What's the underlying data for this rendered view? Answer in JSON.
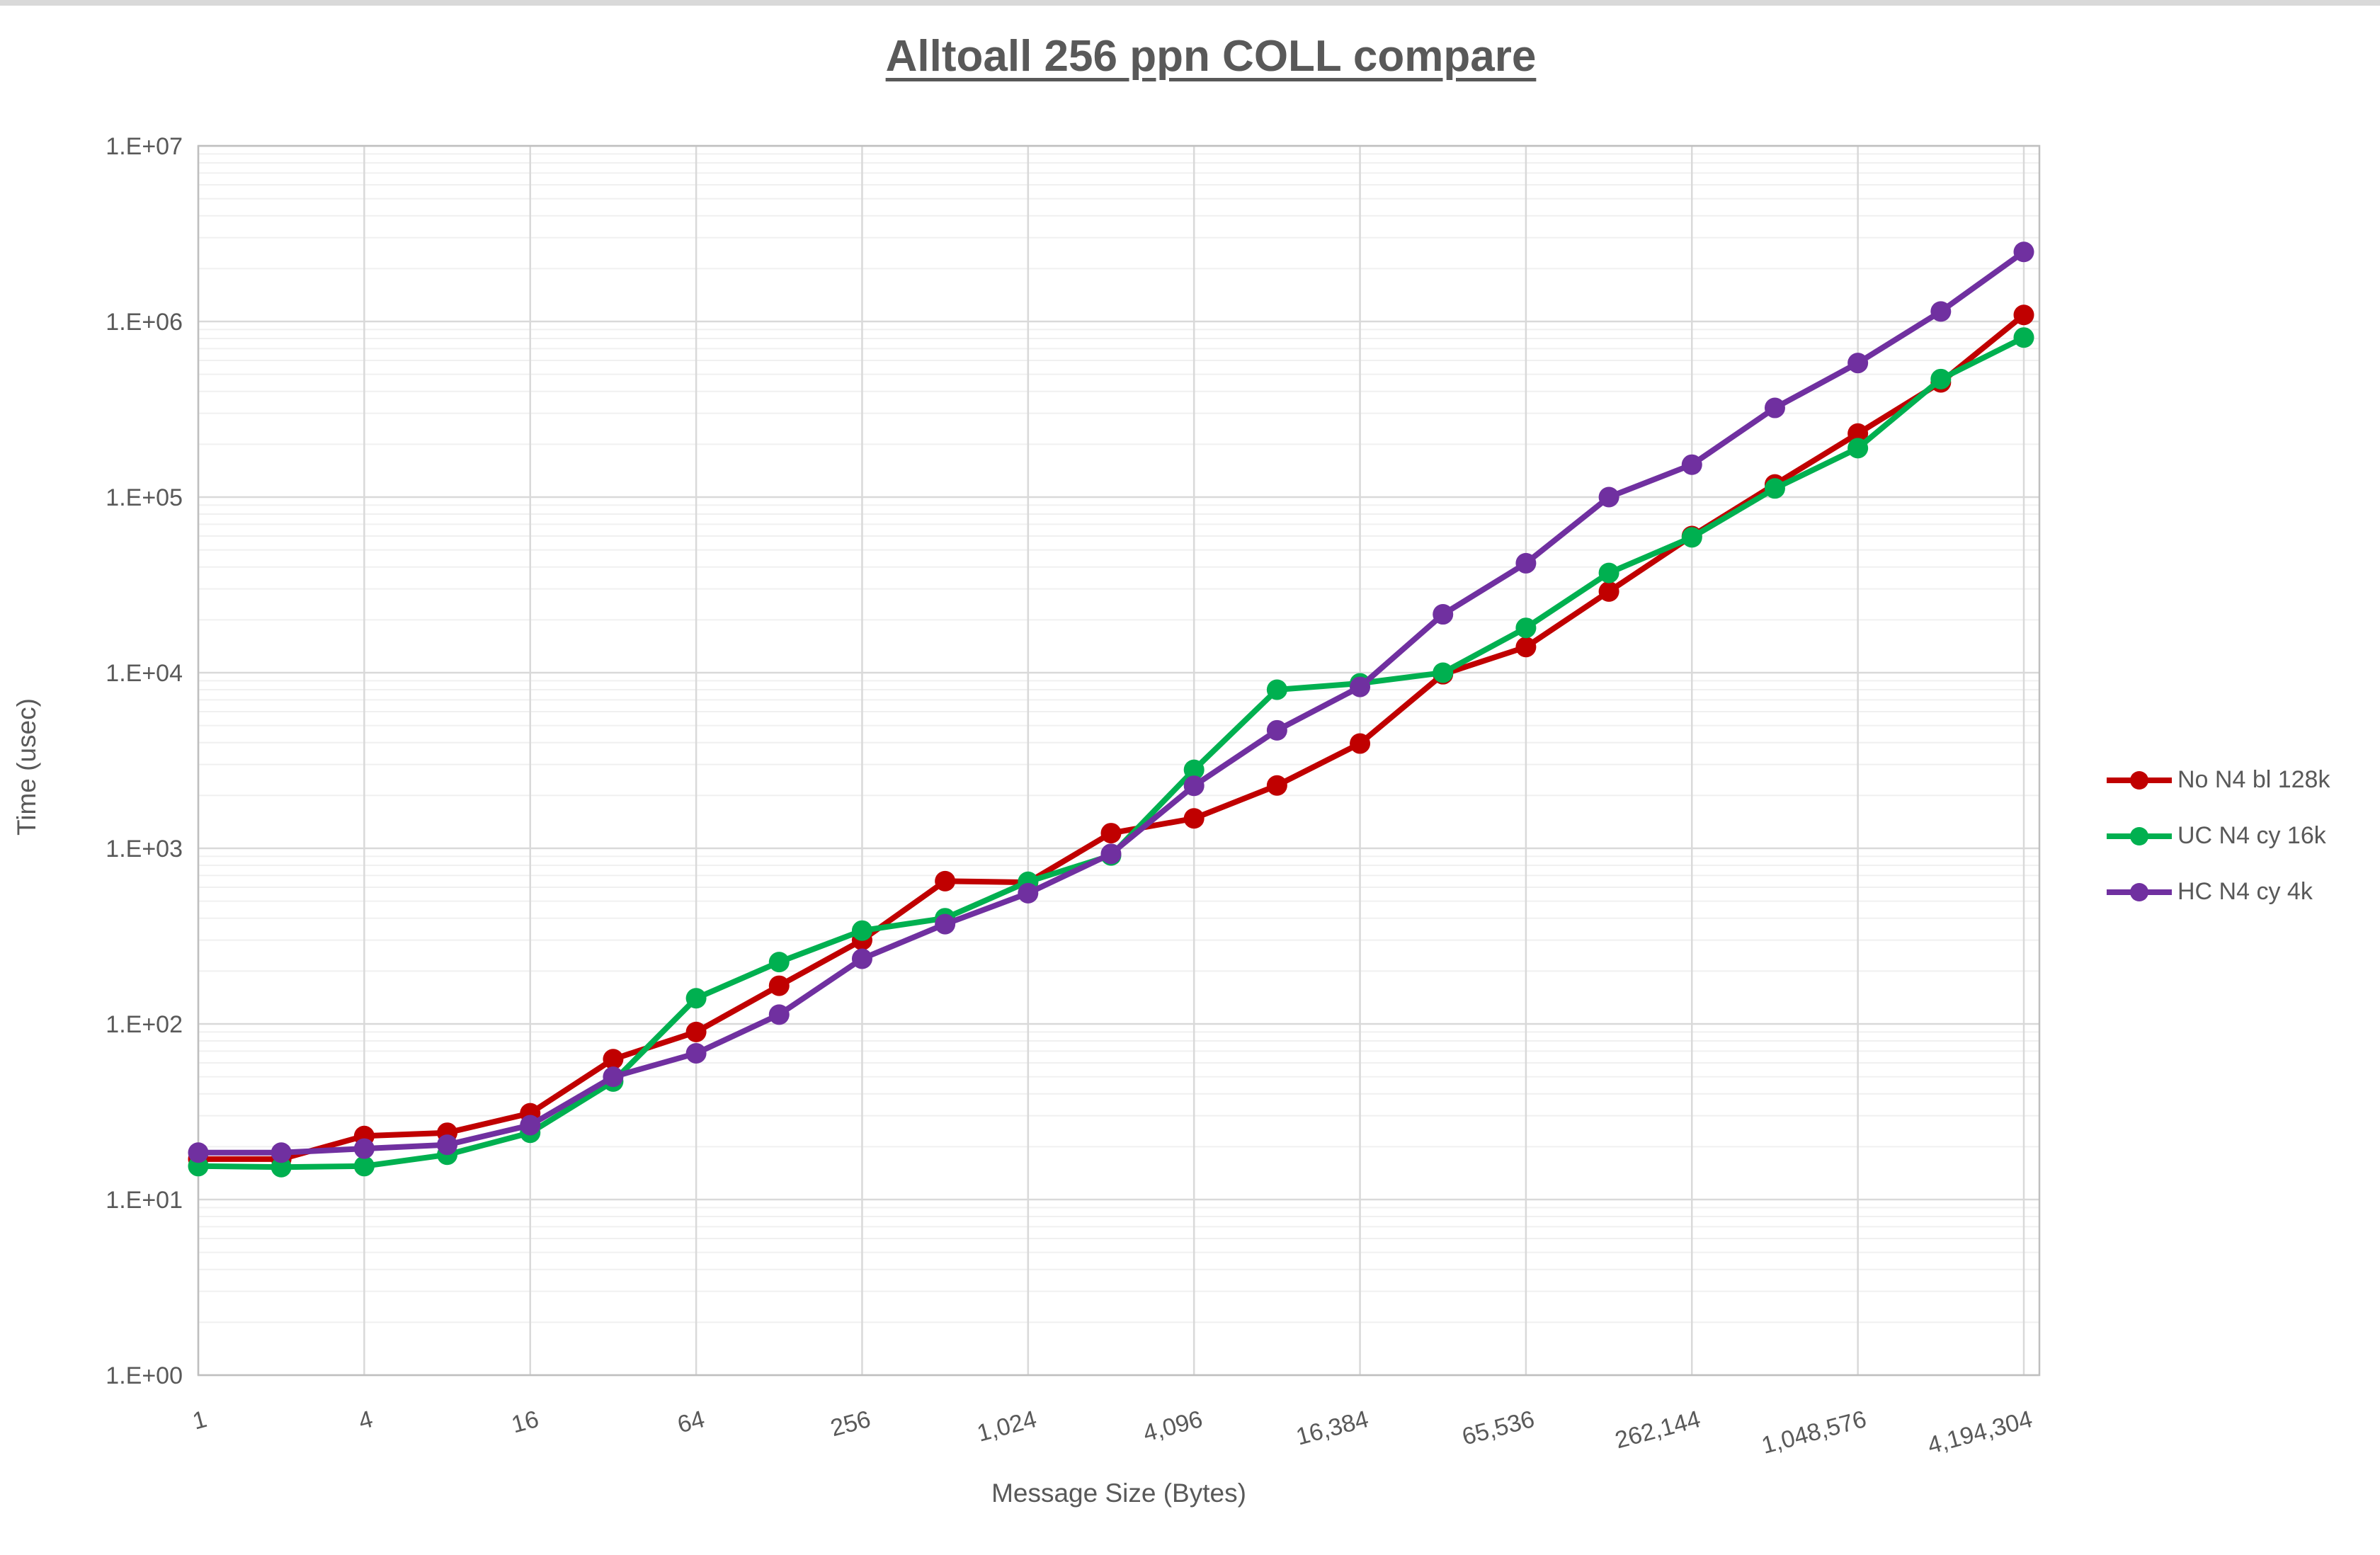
{
  "chart_data": {
    "type": "line",
    "title": "Alltoall 256 ppn COLL compare",
    "xlabel": "Message Size (Bytes)",
    "ylabel": "Time (usec)",
    "x_scale": "log2",
    "y_scale": "log10",
    "ylim": [
      1,
      10000000
    ],
    "xlim": [
      1,
      4194304
    ],
    "grid": "major+minor horizontal, major vertical, legend right",
    "y_tick_labels": [
      "1.E+00",
      "1.E+01",
      "1.E+02",
      "1.E+03",
      "1.E+04",
      "1.E+05",
      "1.E+06",
      "1.E+07"
    ],
    "x_tick_values": [
      1,
      4,
      16,
      64,
      256,
      1024,
      4096,
      16384,
      65536,
      262144,
      1048576,
      4194304
    ],
    "x_tick_labels": [
      "1",
      "4",
      "16",
      "64",
      "256",
      "1,024",
      "4,096",
      "16,384",
      "65,536",
      "262,144",
      "1,048,576",
      "4,194,304"
    ],
    "x": [
      1,
      2,
      4,
      8,
      16,
      32,
      64,
      128,
      256,
      512,
      1024,
      2048,
      4096,
      8192,
      16384,
      32768,
      65536,
      131072,
      262144,
      524288,
      1048576,
      2097152,
      4194304
    ],
    "series": [
      {
        "name": "No N4 bl 128k",
        "color": "#C00000",
        "values": [
          17,
          17,
          23,
          24,
          31,
          63,
          90,
          165,
          300,
          650,
          640,
          1220,
          1480,
          2280,
          3950,
          9800,
          14000,
          29000,
          60000,
          118000,
          230000,
          450000,
          1090000
        ]
      },
      {
        "name": "UC N4 cy 16k",
        "color": "#00B050",
        "values": [
          15.5,
          15.3,
          15.5,
          18,
          24,
          47,
          140,
          225,
          340,
          400,
          645,
          910,
          2800,
          8000,
          8700,
          10000,
          18000,
          37000,
          59000,
          112000,
          190000,
          470000,
          810000
        ]
      },
      {
        "name": "HC N4 cy 4k",
        "color": "#7030A0",
        "values": [
          18.5,
          18.5,
          19.5,
          20.5,
          26.5,
          50,
          68,
          113,
          235,
          370,
          555,
          930,
          2270,
          4700,
          8300,
          21500,
          42000,
          100000,
          153000,
          322000,
          580000,
          1140000,
          2490000
        ]
      }
    ],
    "colors": {
      "text": "#595959",
      "grid_major": "#D9D9D9",
      "grid_minor": "#F0F0F0",
      "plot_border": "#BFBFBF"
    }
  }
}
